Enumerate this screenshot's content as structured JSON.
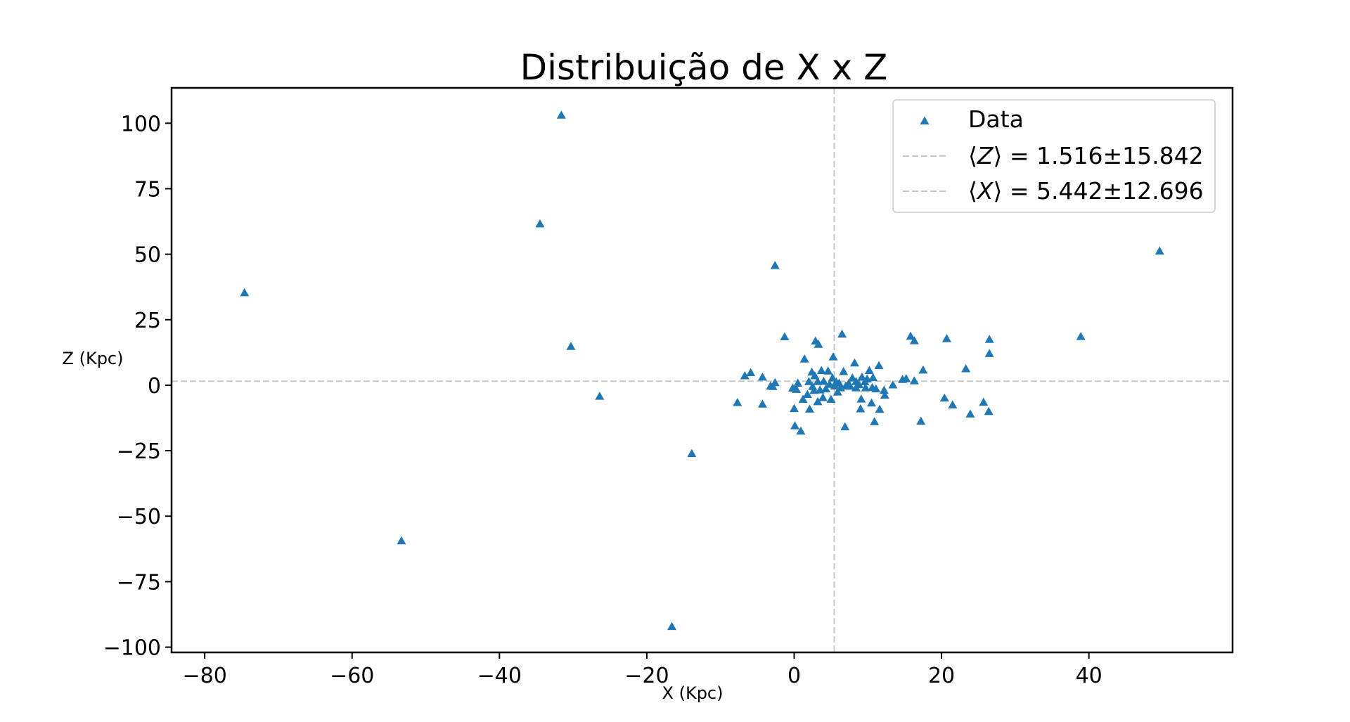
{
  "chart_data": {
    "type": "scatter",
    "title": "Distribuição de X x Z",
    "xlabel": "X (Kpc)",
    "ylabel": "Z (Kpc)",
    "xlim": [
      -84.5,
      59.5
    ],
    "ylim": [
      -102,
      113.5
    ],
    "xticks": [
      -80,
      -60,
      -40,
      -20,
      0,
      20,
      40
    ],
    "xtick_labels": [
      "−80",
      "−60",
      "−40",
      "−20",
      "0",
      "20",
      "40"
    ],
    "yticks": [
      100,
      75,
      50,
      25,
      0,
      -25,
      -50,
      -75,
      -100
    ],
    "ytick_labels": [
      "100",
      "75",
      "50",
      "25",
      "0",
      "−25",
      "−50",
      "−75",
      "−100"
    ],
    "grid": false,
    "legend_position": "top-right",
    "marker": "triangle-up",
    "colors": {
      "points": "#1f77b4",
      "reference_lines": "#c8c8c8",
      "axes": "#000000"
    },
    "series": [
      {
        "name": "Data",
        "points": [
          [
            -74.6,
            35.3
          ],
          [
            -53.3,
            -59.4
          ],
          [
            -34.5,
            61.6
          ],
          [
            -31.6,
            103.1
          ],
          [
            -30.3,
            14.8
          ],
          [
            -26.4,
            -4.2
          ],
          [
            -16.6,
            -92.1
          ],
          [
            -13.9,
            -26.1
          ],
          [
            -2.6,
            45.7
          ],
          [
            49.6,
            51.2
          ],
          [
            38.9,
            18.6
          ],
          [
            26.5,
            17.5
          ],
          [
            26.5,
            12.1
          ],
          [
            26.4,
            -10.0
          ],
          [
            25.7,
            -6.5
          ],
          [
            23.9,
            -11.0
          ],
          [
            23.3,
            6.3
          ],
          [
            21.5,
            -7.5
          ],
          [
            20.7,
            17.8
          ],
          [
            20.4,
            -4.9
          ],
          [
            17.5,
            5.8
          ],
          [
            17.2,
            -13.7
          ],
          [
            16.3,
            1.7
          ],
          [
            16.3,
            17.0
          ],
          [
            15.8,
            18.7
          ],
          [
            15.2,
            2.5
          ],
          [
            14.7,
            2.2
          ],
          [
            13.4,
            0.1
          ],
          [
            12.3,
            -3.8
          ],
          [
            12.2,
            -1.9
          ],
          [
            11.6,
            -9.2
          ],
          [
            11.5,
            7.5
          ],
          [
            11.1,
            -1.4
          ],
          [
            10.9,
            -13.9
          ],
          [
            10.7,
            2.9
          ],
          [
            10.6,
            -0.9
          ],
          [
            10.5,
            -6.8
          ],
          [
            10.2,
            5.6
          ],
          [
            9.9,
            2.4
          ],
          [
            9.7,
            -1.0
          ],
          [
            9.6,
            1.3
          ],
          [
            9.2,
            3.1
          ],
          [
            9.1,
            -5.3
          ],
          [
            9.0,
            -9.0
          ],
          [
            8.8,
            0.2
          ],
          [
            8.4,
            -1.0
          ],
          [
            8.4,
            1.4
          ],
          [
            8.2,
            8.5
          ],
          [
            7.9,
            2.8
          ],
          [
            7.6,
            -0.4
          ],
          [
            7.4,
            0.7
          ],
          [
            7.0,
            -0.3
          ],
          [
            6.9,
            -15.9
          ],
          [
            6.7,
            5.2
          ],
          [
            6.5,
            19.5
          ],
          [
            6.3,
            -1.0
          ],
          [
            6.1,
            0.8
          ],
          [
            5.9,
            -2.6
          ],
          [
            5.7,
            1.3
          ],
          [
            5.5,
            -0.3
          ],
          [
            5.3,
            10.8
          ],
          [
            5.2,
            2.8
          ],
          [
            5.0,
            -5.4
          ],
          [
            4.8,
            0.3
          ],
          [
            4.6,
            5.4
          ],
          [
            4.3,
            -1.4
          ],
          [
            4.0,
            1.5
          ],
          [
            3.9,
            -4.7
          ],
          [
            3.7,
            5.6
          ],
          [
            3.5,
            -1.8
          ],
          [
            3.3,
            15.6
          ],
          [
            3.2,
            1.4
          ],
          [
            3.2,
            -6.3
          ],
          [
            2.9,
            16.9
          ],
          [
            2.8,
            3.6
          ],
          [
            2.7,
            -2.0
          ],
          [
            2.5,
            -0.5
          ],
          [
            2.4,
            5.0
          ],
          [
            2.1,
            -9.1
          ],
          [
            2.0,
            1.4
          ],
          [
            1.8,
            -3.5
          ],
          [
            1.4,
            10.0
          ],
          [
            1.2,
            -5.4
          ],
          [
            0.9,
            -17.5
          ],
          [
            0.5,
            0.8
          ],
          [
            0.3,
            -1.6
          ],
          [
            0.1,
            -15.5
          ],
          [
            0.0,
            -8.9
          ],
          [
            -0.2,
            -1.1
          ],
          [
            -1.3,
            18.5
          ],
          [
            -2.6,
            1.0
          ],
          [
            -2.9,
            -0.5
          ],
          [
            -3.2,
            -0.3
          ],
          [
            -4.3,
            -7.2
          ],
          [
            -4.3,
            3.1
          ],
          [
            -5.9,
            4.8
          ],
          [
            -6.7,
            3.6
          ],
          [
            -7.7,
            -6.6
          ]
        ]
      }
    ],
    "reference_lines": [
      {
        "orientation": "horizontal",
        "value": 1.516,
        "label": "⟨Z⟩ = 1.516±15.842",
        "label_var": "Z",
        "label_rest": "⟩ = 1.516±15.842"
      },
      {
        "orientation": "vertical",
        "value": 5.442,
        "label": "⟨X⟩ = 5.442±12.696",
        "label_var": "X",
        "label_rest": "⟩ = 5.442±12.696"
      }
    ]
  }
}
